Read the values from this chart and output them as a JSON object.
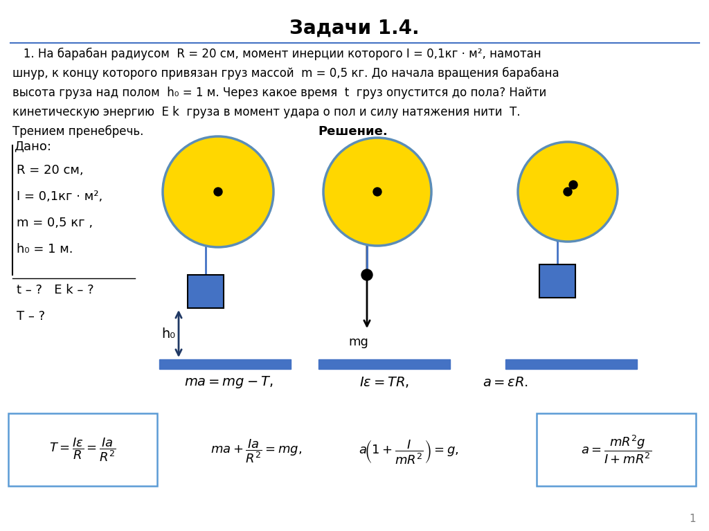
{
  "title": "Задачи 1.4.",
  "problem_lines": [
    "   1. На барабан радиусом  R = 20 см, момент инерции которого I = 0,1кг · м², намотан",
    "шнур, к концу которого привязан груз массой  m = 0,5 кг. До начала вращения барабана",
    "высота груза над полом  h₀ = 1 м. Через какое время  t  груз опустится до пола? Найти",
    "кинетическую энергию  E k  груза в момент удара о пол и силу натяжения нити  Т.",
    "Трением пренебречь."
  ],
  "reshenie": "Решение.",
  "dano_label": "Дано:",
  "given_items": [
    "R = 20 см,",
    "I = 0,1кг · м²,",
    "m = 0,5 кг ,",
    "h₀ = 1 м."
  ],
  "find1": "t – ?   E k – ?",
  "find2": "T – ?",
  "drum_color": "#FFD700",
  "drum_edge_color": "#5B8DB8",
  "rope_color": "#4472C4",
  "box_color": "#4472C4",
  "floor_color": "#4472C4",
  "arrow_color": "#1F3864",
  "background_color": "#FFFFFF",
  "page_num": "1"
}
